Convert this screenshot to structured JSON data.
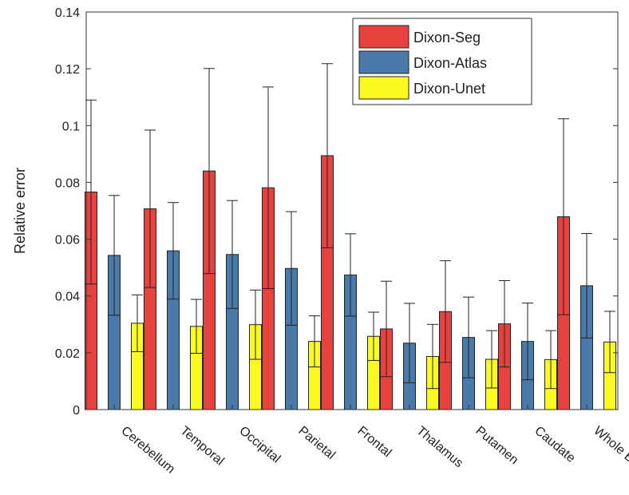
{
  "chart_data": {
    "type": "bar",
    "title": "",
    "xlabel": "",
    "ylabel": "Relative error",
    "ylim": [
      0,
      0.14
    ],
    "yticks": [
      0,
      0.02,
      0.04,
      0.06,
      0.08,
      0.1,
      0.12,
      0.14
    ],
    "ytick_labels": [
      "0",
      "0.02",
      "0.04",
      "0.06",
      "0.08",
      "0.1",
      "0.12",
      "0.14"
    ],
    "categories": [
      "Cerebellum",
      "Temporal",
      "Occipital",
      "Parietal",
      "Frontal",
      "Thalamus",
      "Putamen",
      "Caudate",
      "Whole Brain"
    ],
    "series": [
      {
        "name": "Dixon-Seg",
        "color": "#e8423f",
        "values": [
          0.0766,
          0.0707,
          0.084,
          0.0781,
          0.0894,
          0.0284,
          0.0345,
          0.0302,
          0.0679
        ],
        "std": [
          0.0324,
          0.0277,
          0.0361,
          0.0355,
          0.0324,
          0.0168,
          0.0179,
          0.0152,
          0.0345
        ]
      },
      {
        "name": "Dixon-Atlas",
        "color": "#4a7aaa",
        "values": [
          0.0543,
          0.0559,
          0.0546,
          0.0497,
          0.0474,
          0.0234,
          0.0254,
          0.024,
          0.0436
        ],
        "std": [
          0.0211,
          0.017,
          0.019,
          0.02,
          0.0145,
          0.014,
          0.0142,
          0.0135,
          0.0184
        ]
      },
      {
        "name": "Dixon-Unet",
        "color": "#fafa1e",
        "values": [
          0.0304,
          0.0293,
          0.0299,
          0.024,
          0.0258,
          0.0187,
          0.0177,
          0.0176,
          0.0238
        ],
        "std": [
          0.01,
          0.0095,
          0.0122,
          0.009,
          0.0085,
          0.0113,
          0.0101,
          0.0102,
          0.0108
        ]
      }
    ],
    "legend_position": "top-right",
    "grid": false
  }
}
